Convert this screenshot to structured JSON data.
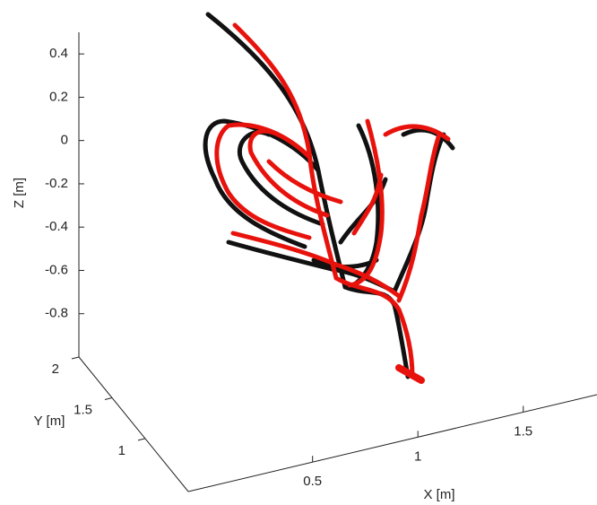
{
  "chart_data": {
    "type": "scatter3d",
    "xlabel": "X [m]",
    "ylabel": "Y [m]",
    "zlabel": "Z [m]",
    "xlim": [
      -0.09,
      1.85
    ],
    "xticks": [
      0.5,
      1,
      1.5
    ],
    "ylim": [
      0.35,
      2
    ],
    "yticks": [
      2,
      1.5,
      1
    ],
    "zlim": [
      -1,
      0.5
    ],
    "zticks": [
      0.4,
      0.2,
      0,
      -0.2,
      -0.4,
      -0.6,
      -0.8
    ],
    "series": [
      {
        "color": "#111111"
      },
      {
        "color": "#e8120c"
      }
    ]
  }
}
